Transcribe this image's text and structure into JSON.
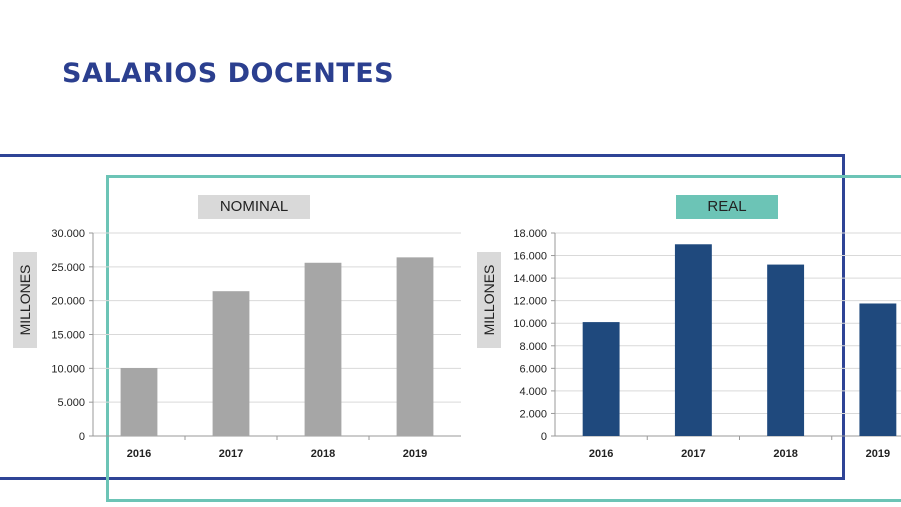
{
  "page": {
    "title": "SALARIOS DOCENTES"
  },
  "colors": {
    "title": "#2b3f8f",
    "frame_outer": "#2f4496",
    "frame_inner": "#6cc4b6",
    "nominal_bar": "#a6a6a6",
    "real_bar": "#1f497d",
    "gridline": "#d9d9d9"
  },
  "chart_data": [
    {
      "type": "bar",
      "title": "NOMINAL",
      "ylabel": "MILLONES",
      "categories": [
        "2016",
        "2017",
        "2018",
        "2019"
      ],
      "values": [
        10050,
        21400,
        25600,
        26400
      ],
      "ylim": [
        0,
        30000
      ],
      "yticks": [
        0,
        5000,
        10000,
        15000,
        20000,
        25000,
        30000
      ],
      "ytick_labels": [
        "0",
        "5.000",
        "10.000",
        "15.000",
        "20.000",
        "25.000",
        "30.000"
      ],
      "grid": true,
      "bar_color": "#a6a6a6"
    },
    {
      "type": "bar",
      "title": "REAL",
      "ylabel": "MILLONES",
      "categories": [
        "2016",
        "2017",
        "2018",
        "2019"
      ],
      "values": [
        10100,
        17000,
        15200,
        11750
      ],
      "ylim": [
        0,
        18000
      ],
      "yticks": [
        0,
        2000,
        4000,
        6000,
        8000,
        10000,
        12000,
        14000,
        16000,
        18000
      ],
      "ytick_labels": [
        "0",
        "2.000",
        "4.000",
        "6.000",
        "8.000",
        "10.000",
        "12.000",
        "14.000",
        "16.000",
        "18.000"
      ],
      "grid": true,
      "bar_color": "#1f497d"
    }
  ]
}
